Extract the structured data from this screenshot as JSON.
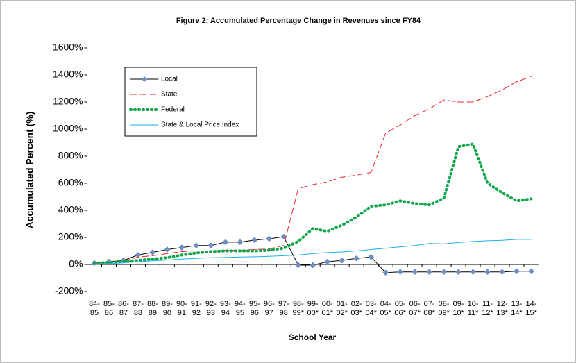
{
  "chart_data": {
    "type": "line",
    "title": "Figure 2: Accumulated Percentage Change in Revenues since FY84",
    "x_label": "School Year",
    "y_label": "Accumulated Percent (%)",
    "categories": [
      "84-85",
      "85-86",
      "86-87",
      "87-88",
      "88-89",
      "89-90",
      "90-91",
      "91-92",
      "92-93",
      "93-94",
      "94-95",
      "95-96",
      "96-97",
      "97-98",
      "98-99*",
      "99-00*",
      "00-01*",
      "01-02*",
      "02-03*",
      "03-04*",
      "04-05*",
      "05-06*",
      "06-07*",
      "07-08*",
      "08-09*",
      "09-10*",
      "10-11*",
      "11-12*",
      "12-13*",
      "13-14*",
      "14-15*"
    ],
    "series": [
      {
        "name": "Local",
        "color": "#000000",
        "marker_color": "#6f8fc3",
        "line_style": "solid",
        "values": [
          10,
          20,
          30,
          70,
          90,
          110,
          125,
          140,
          140,
          165,
          165,
          180,
          190,
          205,
          -5,
          -5,
          20,
          30,
          45,
          55,
          -60,
          -55,
          -55,
          -55,
          -55,
          -55,
          -55,
          -55,
          -55,
          -50,
          -50
        ]
      },
      {
        "name": "State",
        "color": "#e8202a",
        "line_style": "dashed",
        "values": [
          10,
          15,
          25,
          55,
          65,
          80,
          95,
          100,
          100,
          105,
          105,
          110,
          115,
          140,
          560,
          590,
          610,
          645,
          660,
          680,
          970,
          1030,
          1100,
          1150,
          1215,
          1200,
          1200,
          1240,
          1290,
          1350,
          1390
        ]
      },
      {
        "name": "Federal",
        "color": "#12a64a",
        "line_style": "dotted",
        "values": [
          10,
          15,
          20,
          30,
          40,
          50,
          70,
          85,
          95,
          100,
          100,
          100,
          105,
          120,
          170,
          265,
          245,
          290,
          350,
          430,
          440,
          470,
          450,
          440,
          490,
          870,
          890,
          600,
          530,
          470,
          485
        ]
      },
      {
        "name": "State & Local Price Index",
        "color": "#1ab0e8",
        "line_style": "solid",
        "values": [
          0,
          5,
          12,
          20,
          27,
          33,
          40,
          45,
          50,
          52,
          55,
          57,
          60,
          65,
          70,
          80,
          88,
          92,
          100,
          110,
          120,
          130,
          140,
          155,
          152,
          162,
          170,
          175,
          178,
          185,
          185
        ]
      }
    ],
    "ylim": [
      -200,
      1600
    ],
    "yticks": [
      {
        "value": -200,
        "label": "-200%"
      },
      {
        "value": 0,
        "label": "0%"
      },
      {
        "value": 200,
        "label": "200%"
      },
      {
        "value": 400,
        "label": "400%"
      },
      {
        "value": 600,
        "label": "600%"
      },
      {
        "value": 800,
        "label": "800%"
      },
      {
        "value": 1000,
        "label": "1000%"
      },
      {
        "value": 1200,
        "label": "1200%"
      },
      {
        "value": 1400,
        "label": "1400%"
      },
      {
        "value": 1600,
        "label": "1600%"
      }
    ],
    "grid": false,
    "legend": "upper left"
  }
}
